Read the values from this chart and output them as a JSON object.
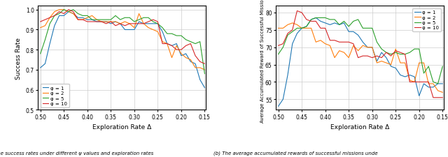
{
  "x_ticks": [
    0.5,
    0.45,
    0.4,
    0.35,
    0.3,
    0.25,
    0.2,
    0.15
  ],
  "x_vals": [
    0.5,
    0.49,
    0.48,
    0.47,
    0.46,
    0.45,
    0.44,
    0.43,
    0.42,
    0.41,
    0.4,
    0.39,
    0.38,
    0.37,
    0.36,
    0.35,
    0.34,
    0.33,
    0.32,
    0.31,
    0.3,
    0.29,
    0.28,
    0.27,
    0.26,
    0.25,
    0.24,
    0.23,
    0.22,
    0.21,
    0.2,
    0.19,
    0.18,
    0.17,
    0.16,
    0.15
  ],
  "left_psi1": [
    0.71,
    0.73,
    0.83,
    0.92,
    0.97,
    0.97,
    0.99,
    0.98,
    0.96,
    0.96,
    0.95,
    0.95,
    0.94,
    0.94,
    0.94,
    0.93,
    0.94,
    0.93,
    0.9,
    0.9,
    0.9,
    0.94,
    0.93,
    0.93,
    0.93,
    0.93,
    0.89,
    0.83,
    0.82,
    0.83,
    0.77,
    0.78,
    0.74,
    0.73,
    0.65,
    0.61
  ],
  "left_psi2": [
    0.91,
    0.92,
    0.96,
    0.99,
    1.0,
    1.0,
    0.99,
    0.98,
    0.95,
    0.95,
    0.96,
    0.97,
    0.95,
    0.94,
    0.94,
    0.94,
    0.94,
    0.93,
    0.94,
    0.93,
    0.91,
    0.98,
    0.93,
    0.91,
    0.9,
    0.89,
    0.84,
    0.83,
    0.76,
    0.82,
    0.78,
    0.76,
    0.75,
    0.71,
    0.71,
    0.7
  ],
  "left_psi5": [
    0.78,
    0.85,
    0.93,
    0.97,
    0.98,
    1.0,
    0.99,
    1.0,
    0.98,
    0.97,
    0.97,
    0.95,
    0.95,
    0.95,
    0.95,
    0.95,
    0.97,
    0.95,
    0.96,
    0.96,
    0.94,
    0.95,
    0.96,
    0.96,
    0.94,
    0.93,
    0.91,
    0.88,
    0.88,
    0.87,
    0.87,
    0.85,
    0.84,
    0.83,
    0.84,
    0.68
  ],
  "left_psi10": [
    0.94,
    0.95,
    0.96,
    0.97,
    0.99,
    0.98,
    1.0,
    0.99,
    0.95,
    0.95,
    0.94,
    0.94,
    0.94,
    0.94,
    0.93,
    0.94,
    0.92,
    0.93,
    0.92,
    0.93,
    0.93,
    0.93,
    0.93,
    0.94,
    0.95,
    0.94,
    0.83,
    0.83,
    0.82,
    0.8,
    0.8,
    0.82,
    0.83,
    0.77,
    0.74,
    0.73
  ],
  "right_psi1": [
    53.0,
    55.0,
    62.0,
    71.0,
    74.0,
    75.5,
    76.0,
    78.0,
    78.5,
    77.5,
    77.0,
    76.5,
    77.0,
    76.5,
    77.0,
    74.5,
    74.5,
    73.5,
    71.5,
    70.0,
    70.0,
    66.0,
    68.5,
    67.0,
    64.5,
    64.0,
    62.0,
    61.5,
    62.0,
    61.5,
    56.0,
    59.5,
    58.5,
    58.5,
    59.5,
    59.5
  ],
  "right_psi2": [
    75.5,
    75.5,
    76.5,
    77.0,
    76.5,
    75.5,
    75.5,
    75.5,
    71.5,
    72.0,
    71.0,
    70.5,
    67.0,
    69.0,
    68.5,
    67.0,
    70.5,
    69.0,
    70.5,
    70.0,
    70.0,
    65.5,
    66.0,
    65.5,
    65.0,
    69.5,
    65.5,
    65.5,
    60.5,
    60.0,
    65.5,
    65.5,
    59.5,
    59.5,
    57.5,
    57.0
  ],
  "right_psi5": [
    68.0,
    70.0,
    73.5,
    74.5,
    75.5,
    75.5,
    76.0,
    78.0,
    78.5,
    78.5,
    78.5,
    78.0,
    78.0,
    76.5,
    77.5,
    76.0,
    77.5,
    78.0,
    75.5,
    75.5,
    75.5,
    71.5,
    69.5,
    68.5,
    68.0,
    68.5,
    68.0,
    68.0,
    68.5,
    69.5,
    69.5,
    62.5,
    64.5,
    60.0,
    59.5,
    64.5
  ],
  "right_psi10": [
    70.5,
    71.0,
    74.0,
    75.0,
    80.5,
    80.0,
    78.0,
    77.5,
    77.5,
    75.5,
    75.5,
    72.0,
    72.0,
    71.5,
    71.5,
    71.5,
    71.0,
    67.0,
    67.5,
    67.5,
    67.0,
    67.5,
    67.0,
    68.5,
    67.5,
    69.0,
    68.5,
    68.0,
    60.0,
    60.0,
    60.0,
    60.0,
    60.0,
    55.5,
    55.5,
    55.5
  ],
  "colors": {
    "psi1": "#1f77b4",
    "psi2": "#ff7f0e",
    "psi5": "#2ca02c",
    "psi10": "#d62728"
  },
  "linewidth": 0.8,
  "left_ylabel": "Success Rate",
  "right_ylabel": "Average Accumulated Reward of Successful Missions",
  "xlabel": "Exploration Rate Δ",
  "left_ylim": [
    0.5,
    1.02
  ],
  "right_ylim": [
    52,
    82
  ],
  "left_yticks": [
    0.5,
    0.6,
    0.7,
    0.8,
    0.9,
    1.0
  ],
  "right_yticks": [
    55,
    60,
    65,
    70,
    75,
    80
  ],
  "caption_left": "(a) The success rates under different ψ values and exploration rates",
  "caption_right": "(b) The average accumulated rewards of successful missions unde",
  "legend_labels": [
    "φ = 1",
    "φ = 2",
    "φ = 5",
    "φ = 10"
  ]
}
